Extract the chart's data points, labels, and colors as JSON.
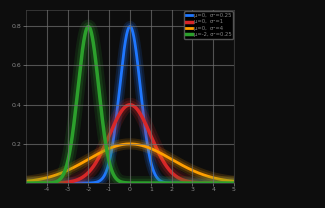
{
  "curves": [
    {
      "mu": 0,
      "sigma": 0.5,
      "color": "#1f77ff",
      "label": "μ=0,  σ²=0.25",
      "lw": 2.0
    },
    {
      "mu": 0,
      "sigma": 1.0,
      "color": "#d62728",
      "label": "μ=0,  σ²=1",
      "lw": 2.5
    },
    {
      "mu": 0,
      "sigma": 2.0,
      "color": "#ff9f00",
      "label": "μ=0,  σ²=4",
      "lw": 2.0
    },
    {
      "mu": -2,
      "sigma": 0.5,
      "color": "#2ca02c",
      "label": "μ=-2, σ²=0.25",
      "lw": 2.5
    }
  ],
  "xlim": [
    -5,
    5
  ],
  "ylim": [
    0,
    0.88
  ],
  "xticks": [
    -4,
    -3,
    -2,
    -1,
    0,
    1,
    2,
    3,
    4,
    5
  ],
  "yticks": [
    0.2,
    0.4,
    0.6,
    0.8
  ],
  "background_color": "#0d0d0d",
  "grid_color": "#707070",
  "tick_color": "#888888",
  "legend_loc": "upper right"
}
